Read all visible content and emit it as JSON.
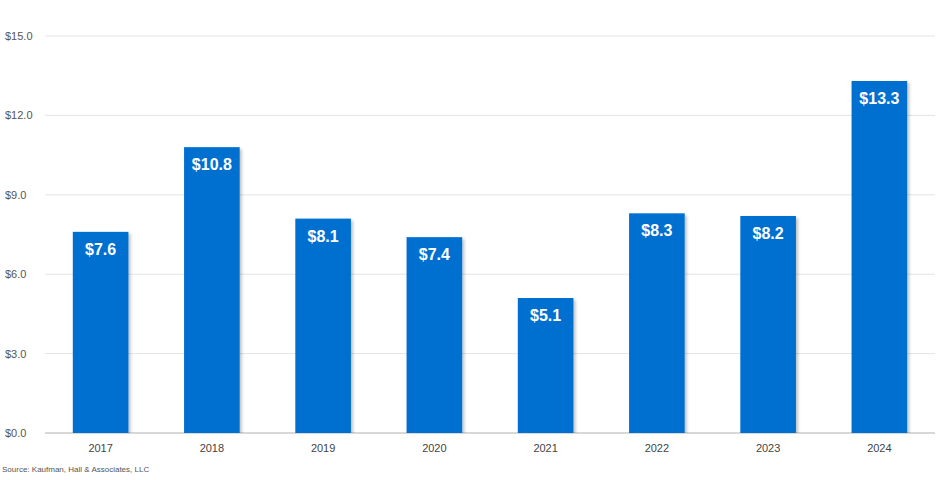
{
  "chart_data": {
    "type": "bar",
    "categories": [
      "2017",
      "2018",
      "2019",
      "2020",
      "2021",
      "2022",
      "2023",
      "2024"
    ],
    "values": [
      7.6,
      10.8,
      8.1,
      7.4,
      5.1,
      8.3,
      8.2,
      13.3
    ],
    "value_labels": [
      "$7.6",
      "$10.8",
      "$8.1",
      "$7.4",
      "$5.1",
      "$8.3",
      "$8.2",
      "$13.3"
    ],
    "color": "#0670d0",
    "ylim": [
      0,
      15
    ],
    "yticks": [
      {
        "value": 0,
        "label": "$0.0"
      },
      {
        "value": 3,
        "label": "$3.0"
      },
      {
        "value": 6,
        "label": "$6.0"
      },
      {
        "value": 9,
        "label": "$9.0"
      },
      {
        "value": 12,
        "label": "$12.0"
      },
      {
        "value": 15,
        "label": "$15.0"
      }
    ],
    "grid": true,
    "data_labels": true,
    "annotations": [
      "Source: Kaufman, Hall & Associates, LLC"
    ]
  }
}
